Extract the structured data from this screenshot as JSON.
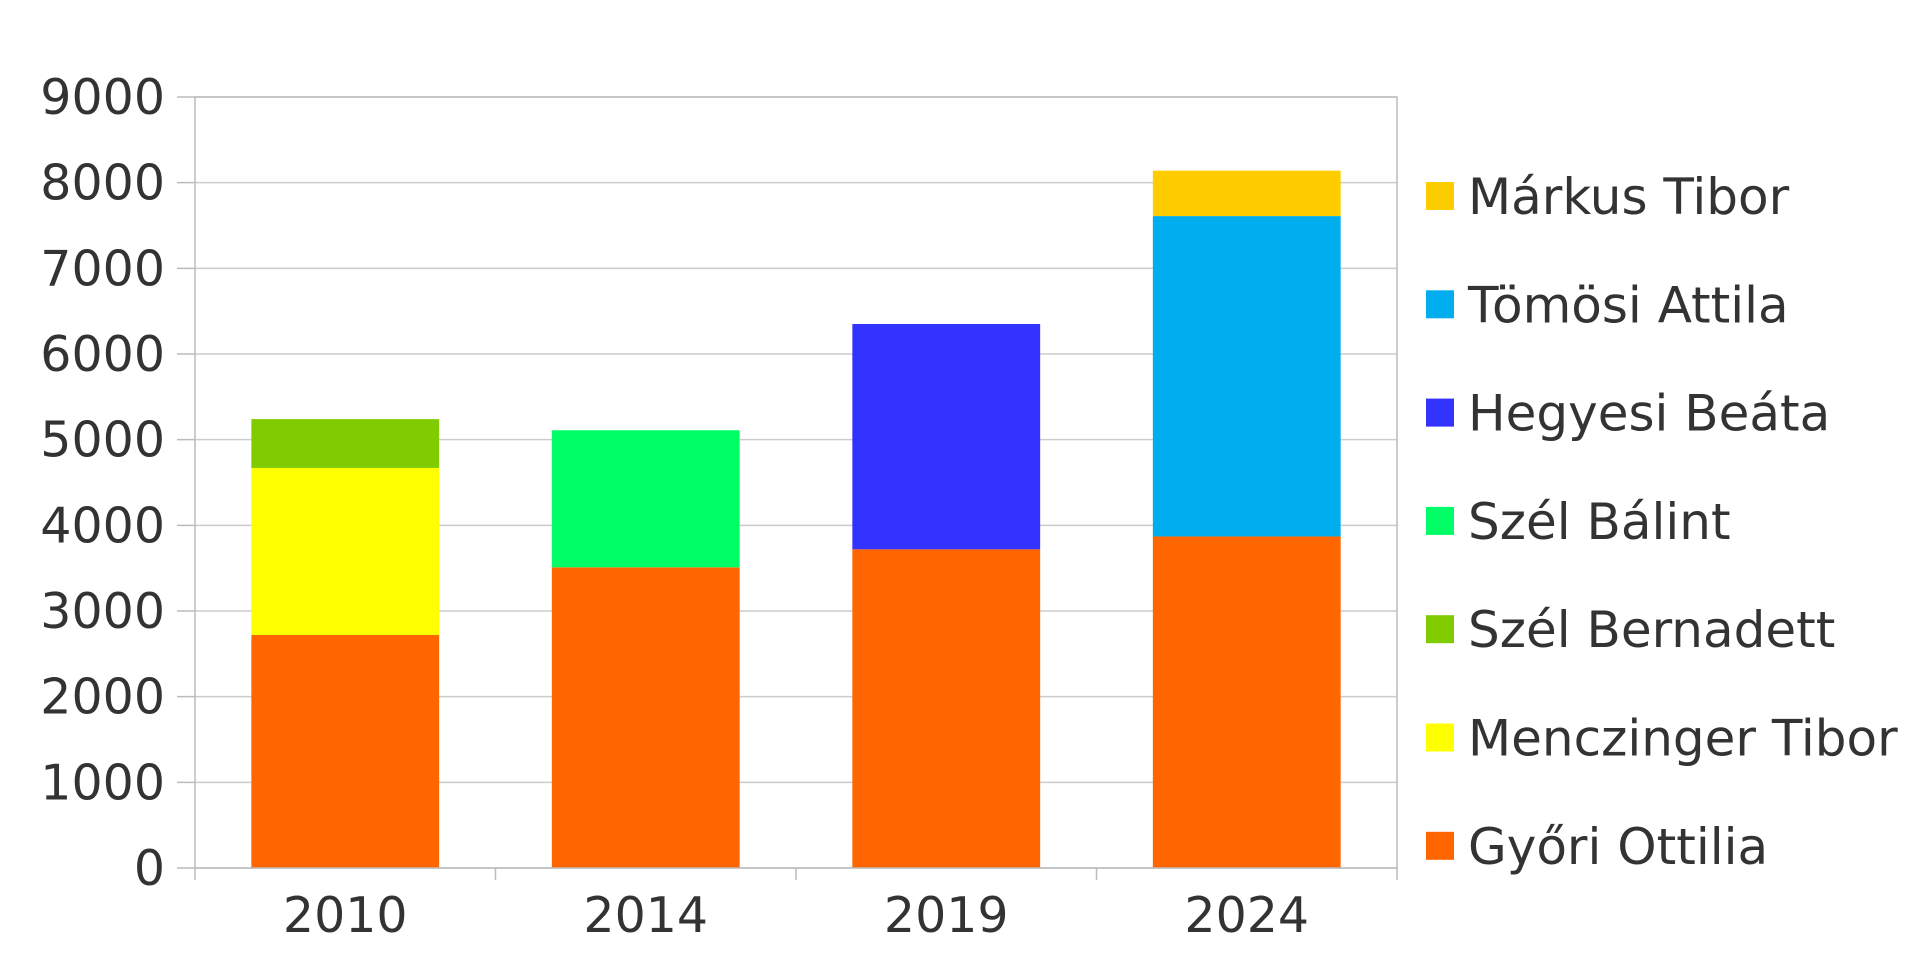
{
  "chart_data": {
    "type": "bar",
    "stacked": true,
    "title": "",
    "xlabel": "",
    "ylabel": "",
    "ylim": [
      0,
      9000
    ],
    "yticks": [
      0,
      1000,
      2000,
      3000,
      4000,
      5000,
      6000,
      7000,
      8000,
      9000
    ],
    "grid": true,
    "legend_position": "right",
    "categories": [
      "2010",
      "2014",
      "2019",
      "2024"
    ],
    "series": [
      {
        "name": "Győri Ottilia",
        "color": "#ff6600",
        "values": [
          2720,
          3510,
          3720,
          3870
        ]
      },
      {
        "name": "Menczinger Tibor",
        "color": "#ffff00",
        "values": [
          1950,
          0,
          0,
          0
        ]
      },
      {
        "name": "Szél Bernadett",
        "color": "#80cc00",
        "values": [
          570,
          0,
          0,
          0
        ]
      },
      {
        "name": "Szél Bálint",
        "color": "#00ff66",
        "values": [
          0,
          1600,
          0,
          0
        ]
      },
      {
        "name": "Hegyesi Beáta",
        "color": "#3333ff",
        "values": [
          0,
          0,
          2630,
          0
        ]
      },
      {
        "name": "Tömösi Attila",
        "color": "#00aeef",
        "values": [
          0,
          0,
          0,
          3740
        ]
      },
      {
        "name": "Márkus Tibor",
        "color": "#ffcc00",
        "values": [
          0,
          0,
          0,
          530
        ]
      }
    ]
  }
}
